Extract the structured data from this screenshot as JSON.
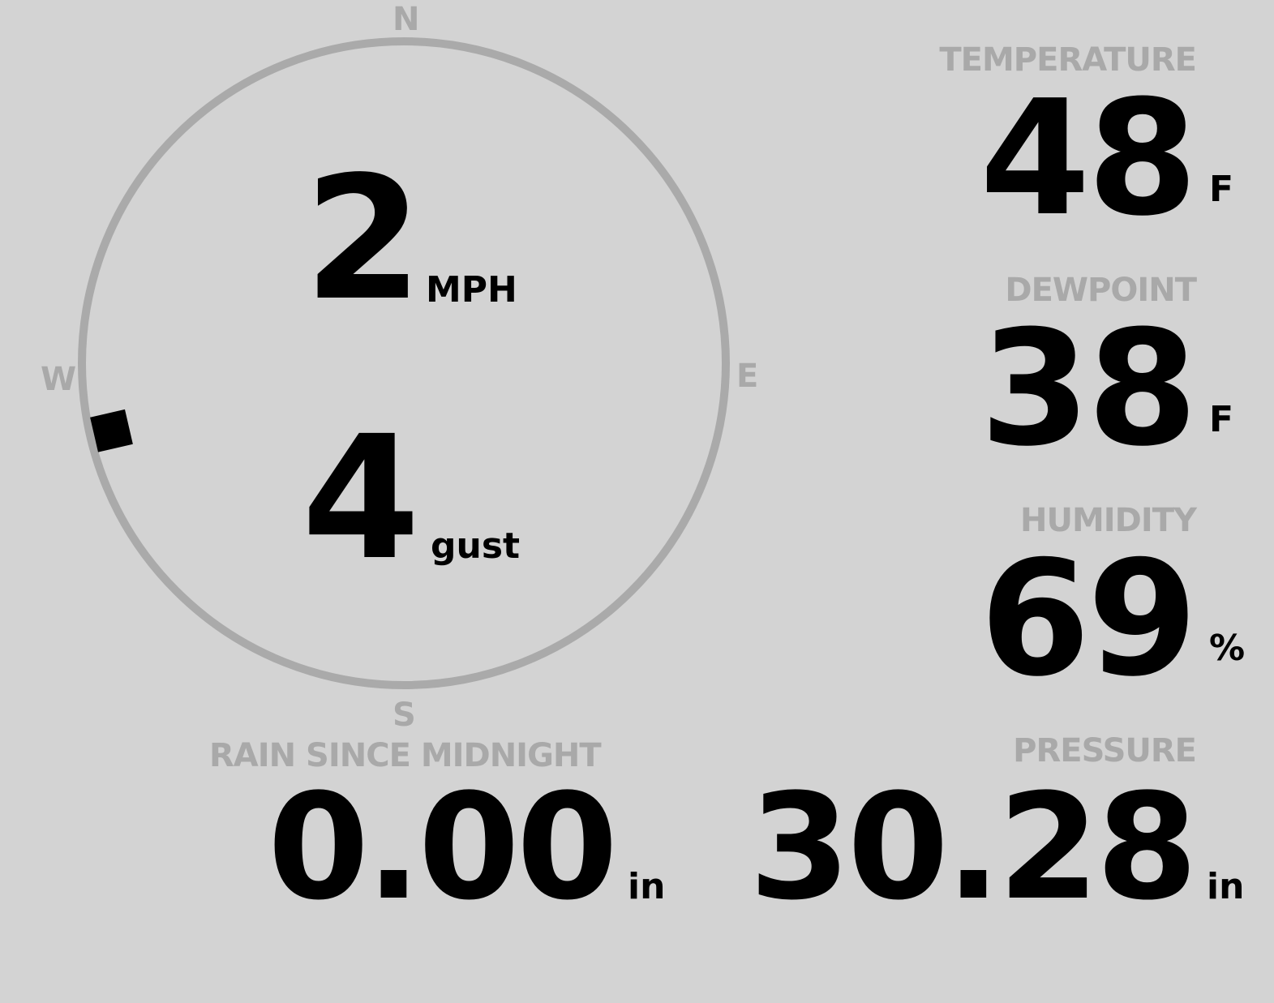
{
  "wind": {
    "speed": "2",
    "speed_unit": "MPH",
    "gust": "4",
    "gust_unit": "gust",
    "direction_degrees": 257,
    "compass": {
      "n": "N",
      "e": "E",
      "s": "S",
      "w": "W"
    }
  },
  "rain": {
    "label": "RAIN SINCE MIDNIGHT",
    "value": "0.00",
    "unit": "in"
  },
  "temperature": {
    "label": "TEMPERATURE",
    "value": "48",
    "unit": "F"
  },
  "dewpoint": {
    "label": "DEWPOINT",
    "value": "38",
    "unit": "F"
  },
  "humidity": {
    "label": "HUMIDITY",
    "value": "69",
    "unit": "%"
  },
  "pressure": {
    "label": "PRESSURE",
    "value": "30.28",
    "unit": "in"
  },
  "colors": {
    "background": "#d3d3d3",
    "label": "#a9a9a9",
    "value": "#000000"
  }
}
